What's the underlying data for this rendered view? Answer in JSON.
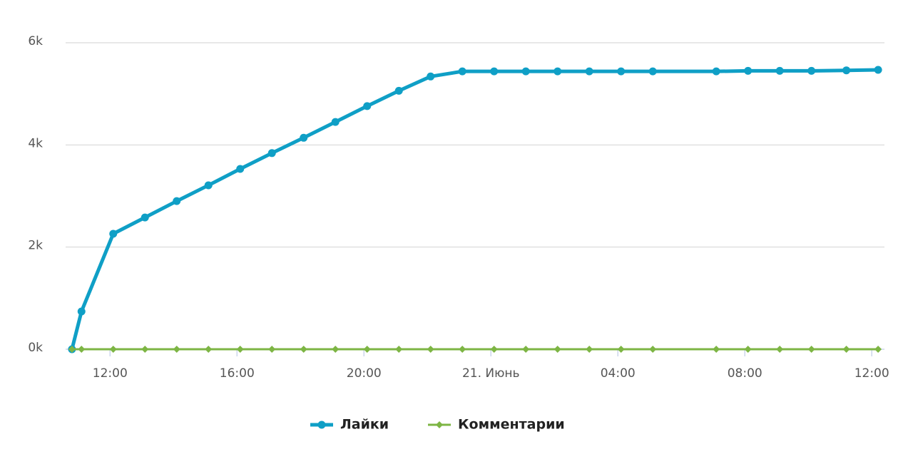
{
  "chart_data": {
    "type": "line",
    "x": [
      10.8,
      11.1,
      12.1,
      13.1,
      14.1,
      15.1,
      16.1,
      17.1,
      18.1,
      19.1,
      20.1,
      21.1,
      22.1,
      23.1,
      24.1,
      25.1,
      26.1,
      27.1,
      28.1,
      29.1,
      31.1,
      32.1,
      33.1,
      34.1,
      35.2,
      36.2
    ],
    "series": [
      {
        "name": "Лайки",
        "color": "#0f9fc6",
        "values": [
          0,
          740,
          2260,
          2580,
          2900,
          3210,
          3530,
          3840,
          4140,
          4450,
          4760,
          5060,
          5340,
          5440,
          5440,
          5440,
          5440,
          5440,
          5440,
          5440,
          5440,
          5450,
          5450,
          5450,
          5460,
          5470
        ]
      },
      {
        "name": "Комментарии",
        "color": "#7db544",
        "values": [
          0,
          0,
          0,
          0,
          0,
          0,
          0,
          0,
          0,
          0,
          0,
          0,
          0,
          0,
          0,
          0,
          0,
          0,
          0,
          0,
          0,
          0,
          0,
          0,
          0,
          0
        ]
      }
    ],
    "xlim": [
      10.6,
      36.4
    ],
    "xticks": [
      {
        "value": 12,
        "label": "12:00"
      },
      {
        "value": 16,
        "label": "16:00"
      },
      {
        "value": 20,
        "label": "20:00"
      },
      {
        "value": 24,
        "label": "21. Июнь"
      },
      {
        "value": 28,
        "label": "04:00"
      },
      {
        "value": 32,
        "label": "08:00"
      },
      {
        "value": 36,
        "label": "12:00"
      }
    ],
    "ylim": [
      0,
      6000
    ],
    "yticks": [
      {
        "value": 0,
        "label": "0k"
      },
      {
        "value": 2000,
        "label": "2k"
      },
      {
        "value": 4000,
        "label": "4k"
      },
      {
        "value": 6000,
        "label": "6k"
      }
    ],
    "grid": true,
    "legend": "bottom"
  }
}
